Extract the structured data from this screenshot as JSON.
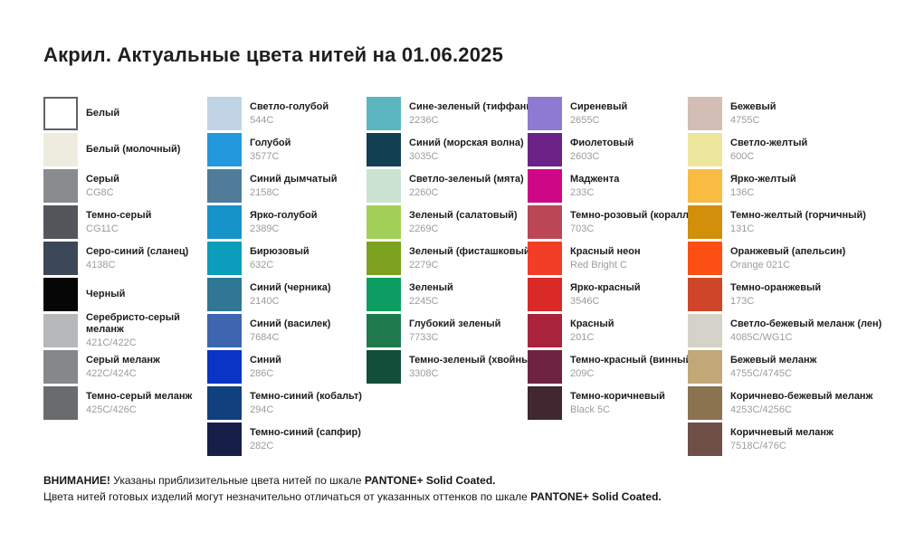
{
  "title": "Акрил. Актуальные цвета нитей на 01.06.2025",
  "columns": [
    {
      "name": "grays",
      "items": [
        {
          "name": "Белый",
          "code": "",
          "hex": "#ffffff",
          "bordered": true
        },
        {
          "name": "Белый (молочный)",
          "code": "",
          "hex": "#eeecdf"
        },
        {
          "name": "Серый",
          "code": "CG8C",
          "hex": "#898c8e"
        },
        {
          "name": "Темно-серый",
          "code": "CG11C",
          "hex": "#53565a"
        },
        {
          "name": "Серо-синий (сланец)",
          "code": "4138C",
          "hex": "#3c4857"
        },
        {
          "name": "Черный",
          "code": "",
          "hex": "#060606"
        },
        {
          "name": "Серебристо-серый меланж",
          "code": "421C/422C",
          "hex": "#b6b8b9"
        },
        {
          "name": "Серый меланж",
          "code": "422C/424C",
          "hex": "#85888a"
        },
        {
          "name": "Темно-серый меланж",
          "code": "425C/426C",
          "hex": "#696c6f"
        }
      ]
    },
    {
      "name": "blues",
      "items": [
        {
          "name": "Светло-голубой",
          "code": "544C",
          "hex": "#c0d4e6"
        },
        {
          "name": "Голубой",
          "code": "3577C",
          "hex": "#2299dc"
        },
        {
          "name": "Синий дымчатый",
          "code": "2158C",
          "hex": "#517c99"
        },
        {
          "name": "Ярко-голубой",
          "code": "2389C",
          "hex": "#1693c8"
        },
        {
          "name": "Бирюзовый",
          "code": "632C",
          "hex": "#0b9dbb"
        },
        {
          "name": "Синий (черника)",
          "code": "2140C",
          "hex": "#2f7795"
        },
        {
          "name": "Синий (василек)",
          "code": "7684C",
          "hex": "#3e65af"
        },
        {
          "name": "Синий",
          "code": "286C",
          "hex": "#0a34c4"
        },
        {
          "name": "Темно-синий (кобальт)",
          "code": "294C",
          "hex": "#11407f"
        },
        {
          "name": "Темно-синий (сапфир)",
          "code": "282C",
          "hex": "#151f48"
        }
      ]
    },
    {
      "name": "greens",
      "items": [
        {
          "name": "Сине-зеленый (тиффани)",
          "code": "2236C",
          "hex": "#5ab5c0"
        },
        {
          "name": "Синий (морская волна)",
          "code": "3035C",
          "hex": "#123f51"
        },
        {
          "name": "Светло-зеленый (мята)",
          "code": "2260C",
          "hex": "#cbe3d2"
        },
        {
          "name": "Зеленый (салатовый)",
          "code": "2269C",
          "hex": "#a2cf58"
        },
        {
          "name": "Зеленый (фисташковый)",
          "code": "2279C",
          "hex": "#7ca21f"
        },
        {
          "name": "Зеленый",
          "code": "2245C",
          "hex": "#0c9e62"
        },
        {
          "name": "Глубокий зеленый",
          "code": "7733C",
          "hex": "#1e7a4d"
        },
        {
          "name": "Темно-зеленый (хвойный)",
          "code": "3308C",
          "hex": "#114f3a"
        }
      ]
    },
    {
      "name": "purples-reds",
      "items": [
        {
          "name": "Сиреневый",
          "code": "2655C",
          "hex": "#8e7bd1"
        },
        {
          "name": "Фиолетовый",
          "code": "2603C",
          "hex": "#6c2387"
        },
        {
          "name": "Маджента",
          "code": "233C",
          "hex": "#ce0787"
        },
        {
          "name": "Темно-розовый (коралл)",
          "code": "703C",
          "hex": "#ba4656"
        },
        {
          "name": "Красный неон",
          "code": "Red Bright C",
          "hex": "#f23d26"
        },
        {
          "name": "Ярко-красный",
          "code": "3546C",
          "hex": "#d92a28"
        },
        {
          "name": "Красный",
          "code": "201C",
          "hex": "#a9243a"
        },
        {
          "name": "Темно-красный (винный)",
          "code": "209C",
          "hex": "#6f2342"
        },
        {
          "name": "Темно-коричневый",
          "code": "Black 5C",
          "hex": "#402730"
        }
      ]
    },
    {
      "name": "yellows-browns",
      "items": [
        {
          "name": "Бежевый",
          "code": "4755C",
          "hex": "#d3beb5"
        },
        {
          "name": "Светло-желтый",
          "code": "600C",
          "hex": "#ede79e"
        },
        {
          "name": "Ярко-желтый",
          "code": "136C",
          "hex": "#f8bc42"
        },
        {
          "name": "Темно-желтый (горчичный)",
          "code": "131C",
          "hex": "#d18f0b"
        },
        {
          "name": "Оранжевый (апельсин)",
          "code": "Orange 021C",
          "hex": "#fb4f14"
        },
        {
          "name": "Темно-оранжевый",
          "code": "173C",
          "hex": "#cf4527"
        },
        {
          "name": "Светло-бежевый меланж (лен)",
          "code": "4085C/WG1C",
          "hex": "#d5d2ca"
        },
        {
          "name": "Бежевый меланж",
          "code": "4755C/4745C",
          "hex": "#c2a877"
        },
        {
          "name": "Коричнево-бежевый меланж",
          "code": "4253C/4256C",
          "hex": "#8b7350"
        },
        {
          "name": "Коричневый меланж",
          "code": "7518C/476C",
          "hex": "#6e5047"
        }
      ]
    }
  ],
  "footer": {
    "line1": [
      {
        "t": "ВНИМАНИЕ!",
        "b": true
      },
      {
        "t": " Указаны приблизительные цвета нитей по шкале ",
        "b": false
      },
      {
        "t": "PANTONE+ Solid Coated.",
        "b": true
      }
    ],
    "line2": [
      {
        "t": "Цвета нитей готовых изделий могут незначительно отличаться от указанных оттенков по шкале ",
        "b": false
      },
      {
        "t": "PANTONE+ Solid Coated.",
        "b": true
      }
    ]
  }
}
